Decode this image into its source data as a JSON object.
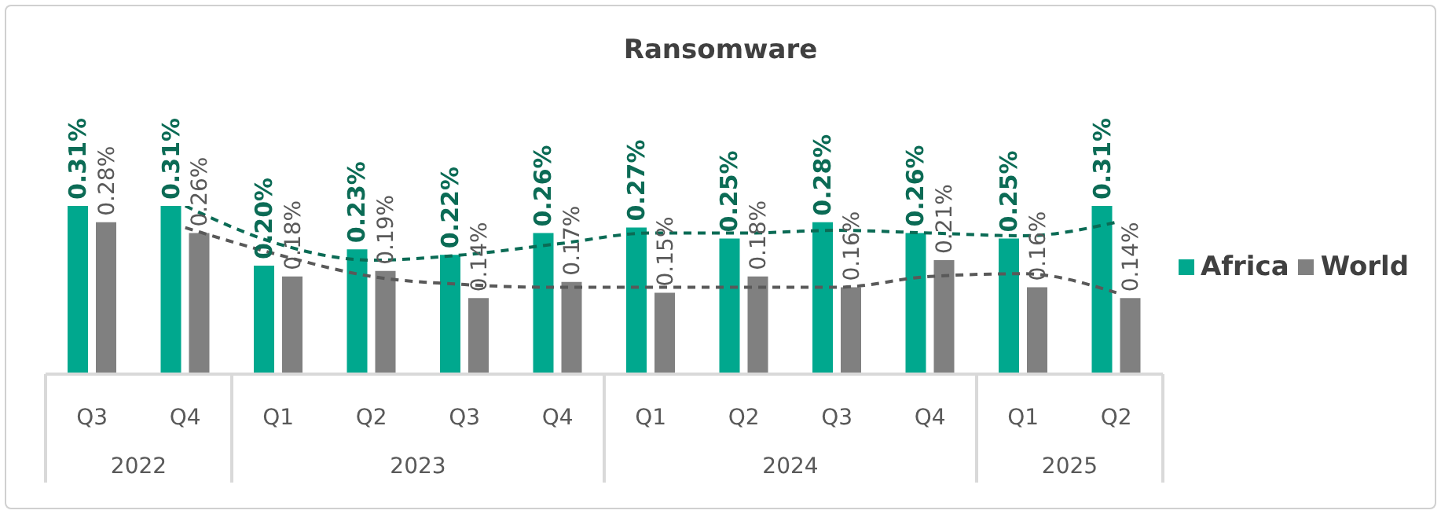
{
  "chart_data": {
    "type": "bar",
    "title": "Ransomware",
    "categories": [
      "Q3",
      "Q4",
      "Q1",
      "Q2",
      "Q3",
      "Q4",
      "Q1",
      "Q2",
      "Q3",
      "Q4",
      "Q1",
      "Q2"
    ],
    "annotations": [
      "2022",
      "2023",
      "2024",
      "2025"
    ],
    "legend": "right",
    "series": [
      {
        "name": "Africa",
        "type": "bar",
        "color": "#00a88e",
        "values": [
          0.31,
          0.31,
          0.2,
          0.23,
          0.22,
          0.26,
          0.27,
          0.25,
          0.28,
          0.26,
          0.25,
          0.31
        ],
        "value_labels": [
          "0.31%",
          "0.31%",
          "0.20%",
          "0.23%",
          "0.22%",
          "0.26%",
          "0.27%",
          "0.25%",
          "0.28%",
          "0.26%",
          "0.25%",
          "0.31%"
        ]
      },
      {
        "name": "World",
        "type": "bar",
        "color": "#808080",
        "values": [
          0.28,
          0.26,
          0.18,
          0.19,
          0.14,
          0.17,
          0.15,
          0.18,
          0.16,
          0.21,
          0.16,
          0.14
        ],
        "value_labels": [
          "0.28%",
          "0.26%",
          "0.18%",
          "0.19%",
          "0.14%",
          "0.17%",
          "0.15%",
          "0.18%",
          "0.16%",
          "0.21%",
          "0.16%",
          "0.14%"
        ]
      },
      {
        "type": "line",
        "line_style": "dashed",
        "color": "#0b6b55",
        "values": [
          null,
          0.31,
          0.24,
          0.21,
          0.22,
          0.24,
          0.26,
          0.26,
          0.265,
          0.26,
          0.255,
          0.28
        ]
      },
      {
        "type": "line",
        "line_style": "dashed",
        "color": "#595959",
        "values": [
          null,
          0.27,
          0.22,
          0.18,
          0.165,
          0.16,
          0.16,
          0.16,
          0.16,
          0.18,
          0.185,
          0.15
        ]
      }
    ]
  }
}
